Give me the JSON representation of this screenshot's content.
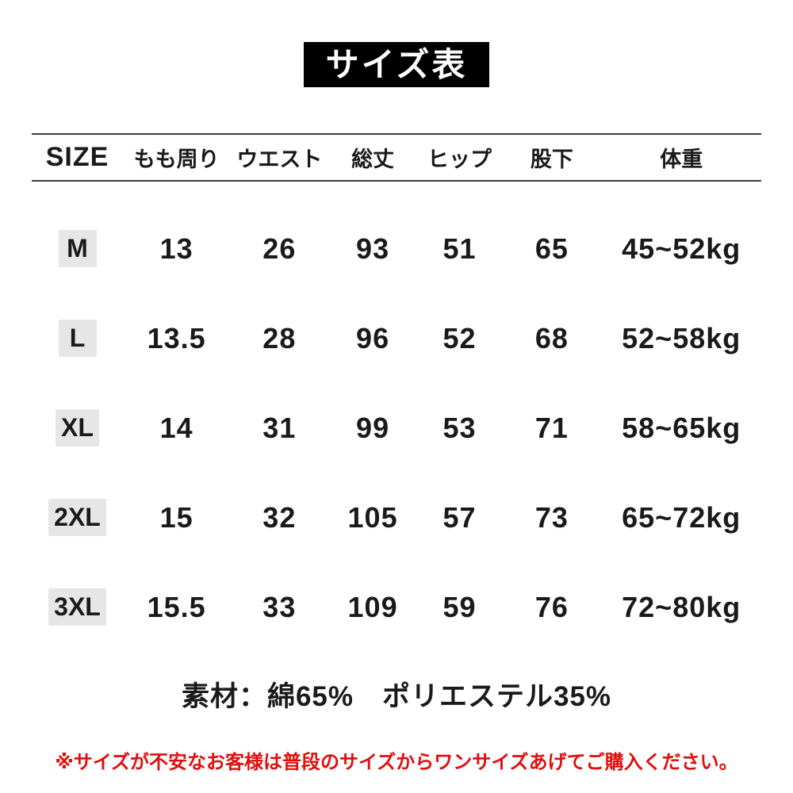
{
  "title": "サイズ表",
  "chart_data": {
    "type": "table",
    "title": "サイズ表",
    "columns": [
      "SIZE",
      "もも周り",
      "ウエスト",
      "総丈",
      "ヒップ",
      "股下",
      "体重"
    ],
    "rows": [
      {
        "size": "M",
        "values": [
          "13",
          "26",
          "93",
          "51",
          "65",
          "45~52kg"
        ]
      },
      {
        "size": "L",
        "values": [
          "13.5",
          "28",
          "96",
          "52",
          "68",
          "52~58kg"
        ]
      },
      {
        "size": "XL",
        "values": [
          "14",
          "31",
          "99",
          "53",
          "71",
          "58~65kg"
        ]
      },
      {
        "size": "2XL",
        "values": [
          "15",
          "32",
          "105",
          "57",
          "73",
          "65~72kg"
        ]
      },
      {
        "size": "3XL",
        "values": [
          "15.5",
          "33",
          "109",
          "59",
          "76",
          "72~80kg"
        ]
      }
    ]
  },
  "material_note": "素材：綿65%　ポリエステル35%",
  "caution_note": "※サイズが不安なお客様は普段のサイズからワンサイズあげてご購入ください。",
  "colors": {
    "title_bg": "#000000",
    "title_text": "#ffffff",
    "size_chip_bg": "#e6e6e6",
    "text": "#1a1a1a",
    "rule_line": "#3d3d3d",
    "caution_red": "#e10e0e"
  }
}
